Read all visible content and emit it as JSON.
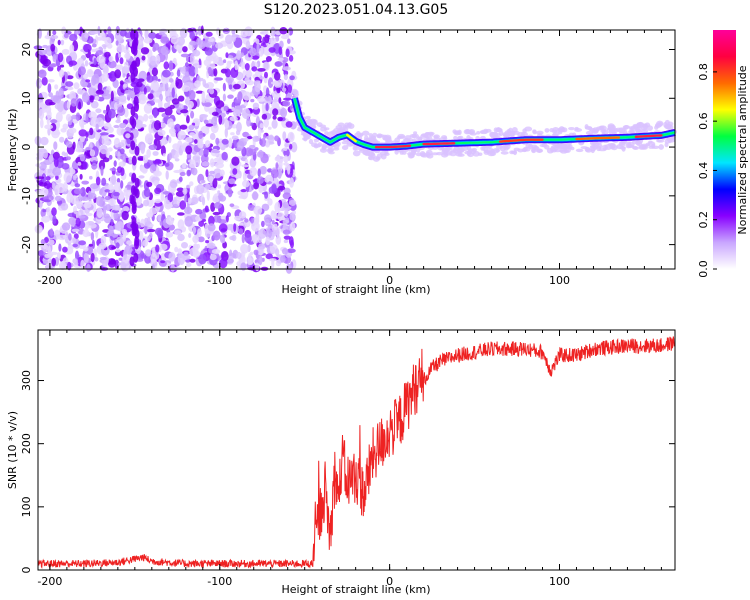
{
  "title": "S120.2023.051.04.13.G05",
  "chart_data": [
    {
      "type": "heatmap",
      "xlabel": "Height of straight line (km)",
      "ylabel": "Frequency (Hz)",
      "xlim": [
        -207,
        168
      ],
      "ylim": [
        -25,
        24
      ],
      "xticks": [
        "-200",
        "-100",
        "0",
        "100"
      ],
      "xtick_values": [
        -200,
        -100,
        0,
        100
      ],
      "yticks": [
        "-20",
        "-10",
        "0",
        "10",
        "20"
      ],
      "ytick_values": [
        -20,
        -10,
        0,
        10,
        20
      ],
      "noise_region_x": [
        -207,
        -56
      ],
      "signal_region_x": [
        -56,
        168
      ],
      "ridge": {
        "x": [
          -56,
          -53,
          -50,
          -45,
          -40,
          -35,
          -30,
          -25,
          -20,
          -15,
          -10,
          0,
          10,
          20,
          40,
          60,
          80,
          100,
          120,
          140,
          160,
          168
        ],
        "y": [
          10,
          6,
          4,
          3,
          2,
          1,
          2,
          2.5,
          1.2,
          0.5,
          0,
          0,
          0.2,
          0.6,
          0.8,
          1,
          1.5,
          1.5,
          1.8,
          2,
          2.4,
          3
        ]
      },
      "colorbar": {
        "label": "Normalized spectral amplitude",
        "ticks": [
          "0.0",
          "0.2",
          "0.4",
          "0.6",
          "0.8"
        ],
        "tick_values": [
          0,
          0.2,
          0.4,
          0.6,
          0.8
        ],
        "range": [
          0,
          0.97
        ],
        "colormap": [
          "#ffffff",
          "#c9a6ff",
          "#8800ff",
          "#0000ff",
          "#00e6ff",
          "#00ff40",
          "#ffff00",
          "#ff6a00",
          "#ff0040",
          "#ff0099"
        ]
      }
    },
    {
      "type": "line",
      "xlabel": "Height of straight line (km)",
      "ylabel": "SNR (10 * v/v)",
      "xlim": [
        -207,
        168
      ],
      "ylim": [
        0,
        380
      ],
      "xticks": [
        "-200",
        "-100",
        "0",
        "100"
      ],
      "xtick_values": [
        -200,
        -100,
        0,
        100
      ],
      "yticks": [
        "0",
        "100",
        "200",
        "300"
      ],
      "ytick_values": [
        0,
        100,
        200,
        300
      ],
      "color": "#ee2222",
      "series": [
        {
          "x": [
            -207,
            -180,
            -160,
            -145,
            -140,
            -120,
            -100,
            -80,
            -60,
            -45,
            -42,
            -40,
            -38,
            -35,
            -32,
            -30,
            -28,
            -25,
            -20,
            -15,
            -10,
            -5,
            0,
            5,
            10,
            15,
            20,
            25,
            30,
            40,
            50,
            60,
            80,
            90,
            95,
            100,
            110,
            120,
            140,
            160,
            168
          ],
          "y": [
            10,
            10,
            12,
            20,
            14,
            10,
            10,
            10,
            10,
            10,
            80,
            100,
            130,
            50,
            160,
            110,
            180,
            140,
            150,
            120,
            180,
            200,
            220,
            230,
            260,
            290,
            300,
            320,
            330,
            340,
            345,
            350,
            350,
            345,
            315,
            340,
            340,
            350,
            355,
            355,
            360
          ]
        }
      ]
    }
  ]
}
